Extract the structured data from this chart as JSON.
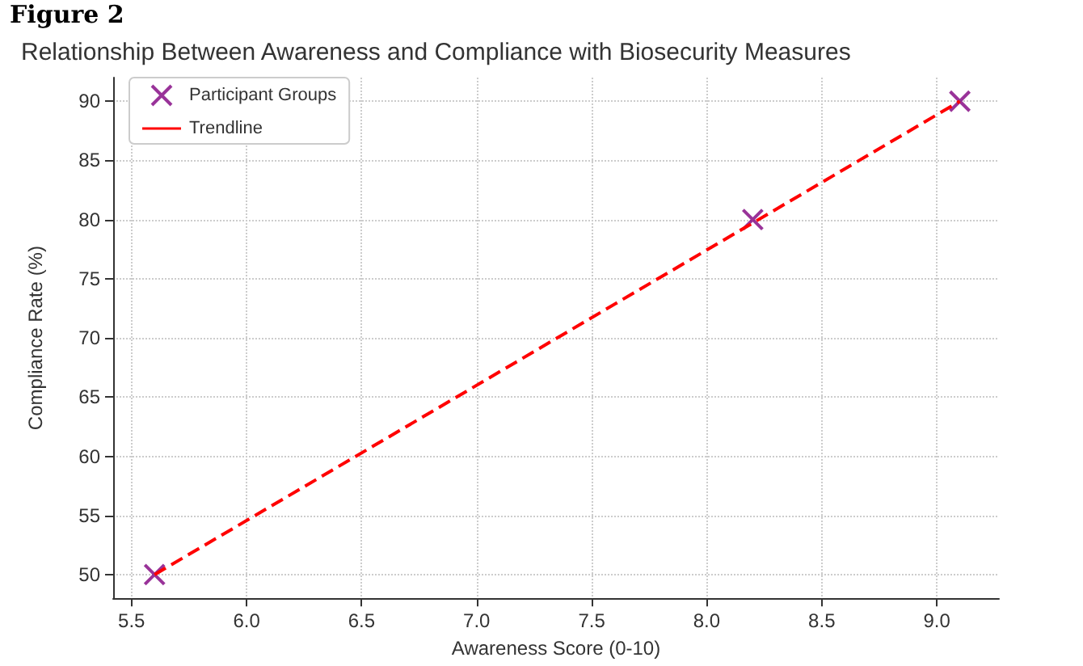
{
  "chart_data": {
    "type": "scatter",
    "title": "Relationship Between Awareness and Compliance with Biosecurity Measures",
    "annotations": [
      "Figure 2"
    ],
    "xlabel": "Awareness Score (0-10)",
    "ylabel": "Compliance Rate (%)",
    "series": [
      {
        "name": "Participant Groups",
        "color": "#800080",
        "marker": "cross",
        "x": [
          5.6,
          8.2,
          9.1
        ],
        "values": [
          50,
          80,
          90
        ]
      },
      {
        "name": "Trendline",
        "type": "line",
        "color": "#ff0000",
        "line_style": "dashed",
        "marker": "none",
        "x": [
          5.6,
          9.1
        ],
        "values": [
          50,
          90
        ]
      }
    ],
    "xlim": [
      5.42,
      9.27
    ],
    "xticks": [
      5.5,
      {
        "value": 6,
        "label": "6.0"
      },
      6.5,
      {
        "value": 7,
        "label": "7.0"
      },
      7.5,
      {
        "value": 8,
        "label": "8.0"
      },
      8.5,
      {
        "value": 9,
        "label": "9.0"
      }
    ],
    "ylim": [
      48,
      92
    ],
    "yticks": [
      50,
      55,
      60,
      65,
      70,
      75,
      80,
      85,
      90
    ],
    "grid": true,
    "legend": "top left"
  }
}
